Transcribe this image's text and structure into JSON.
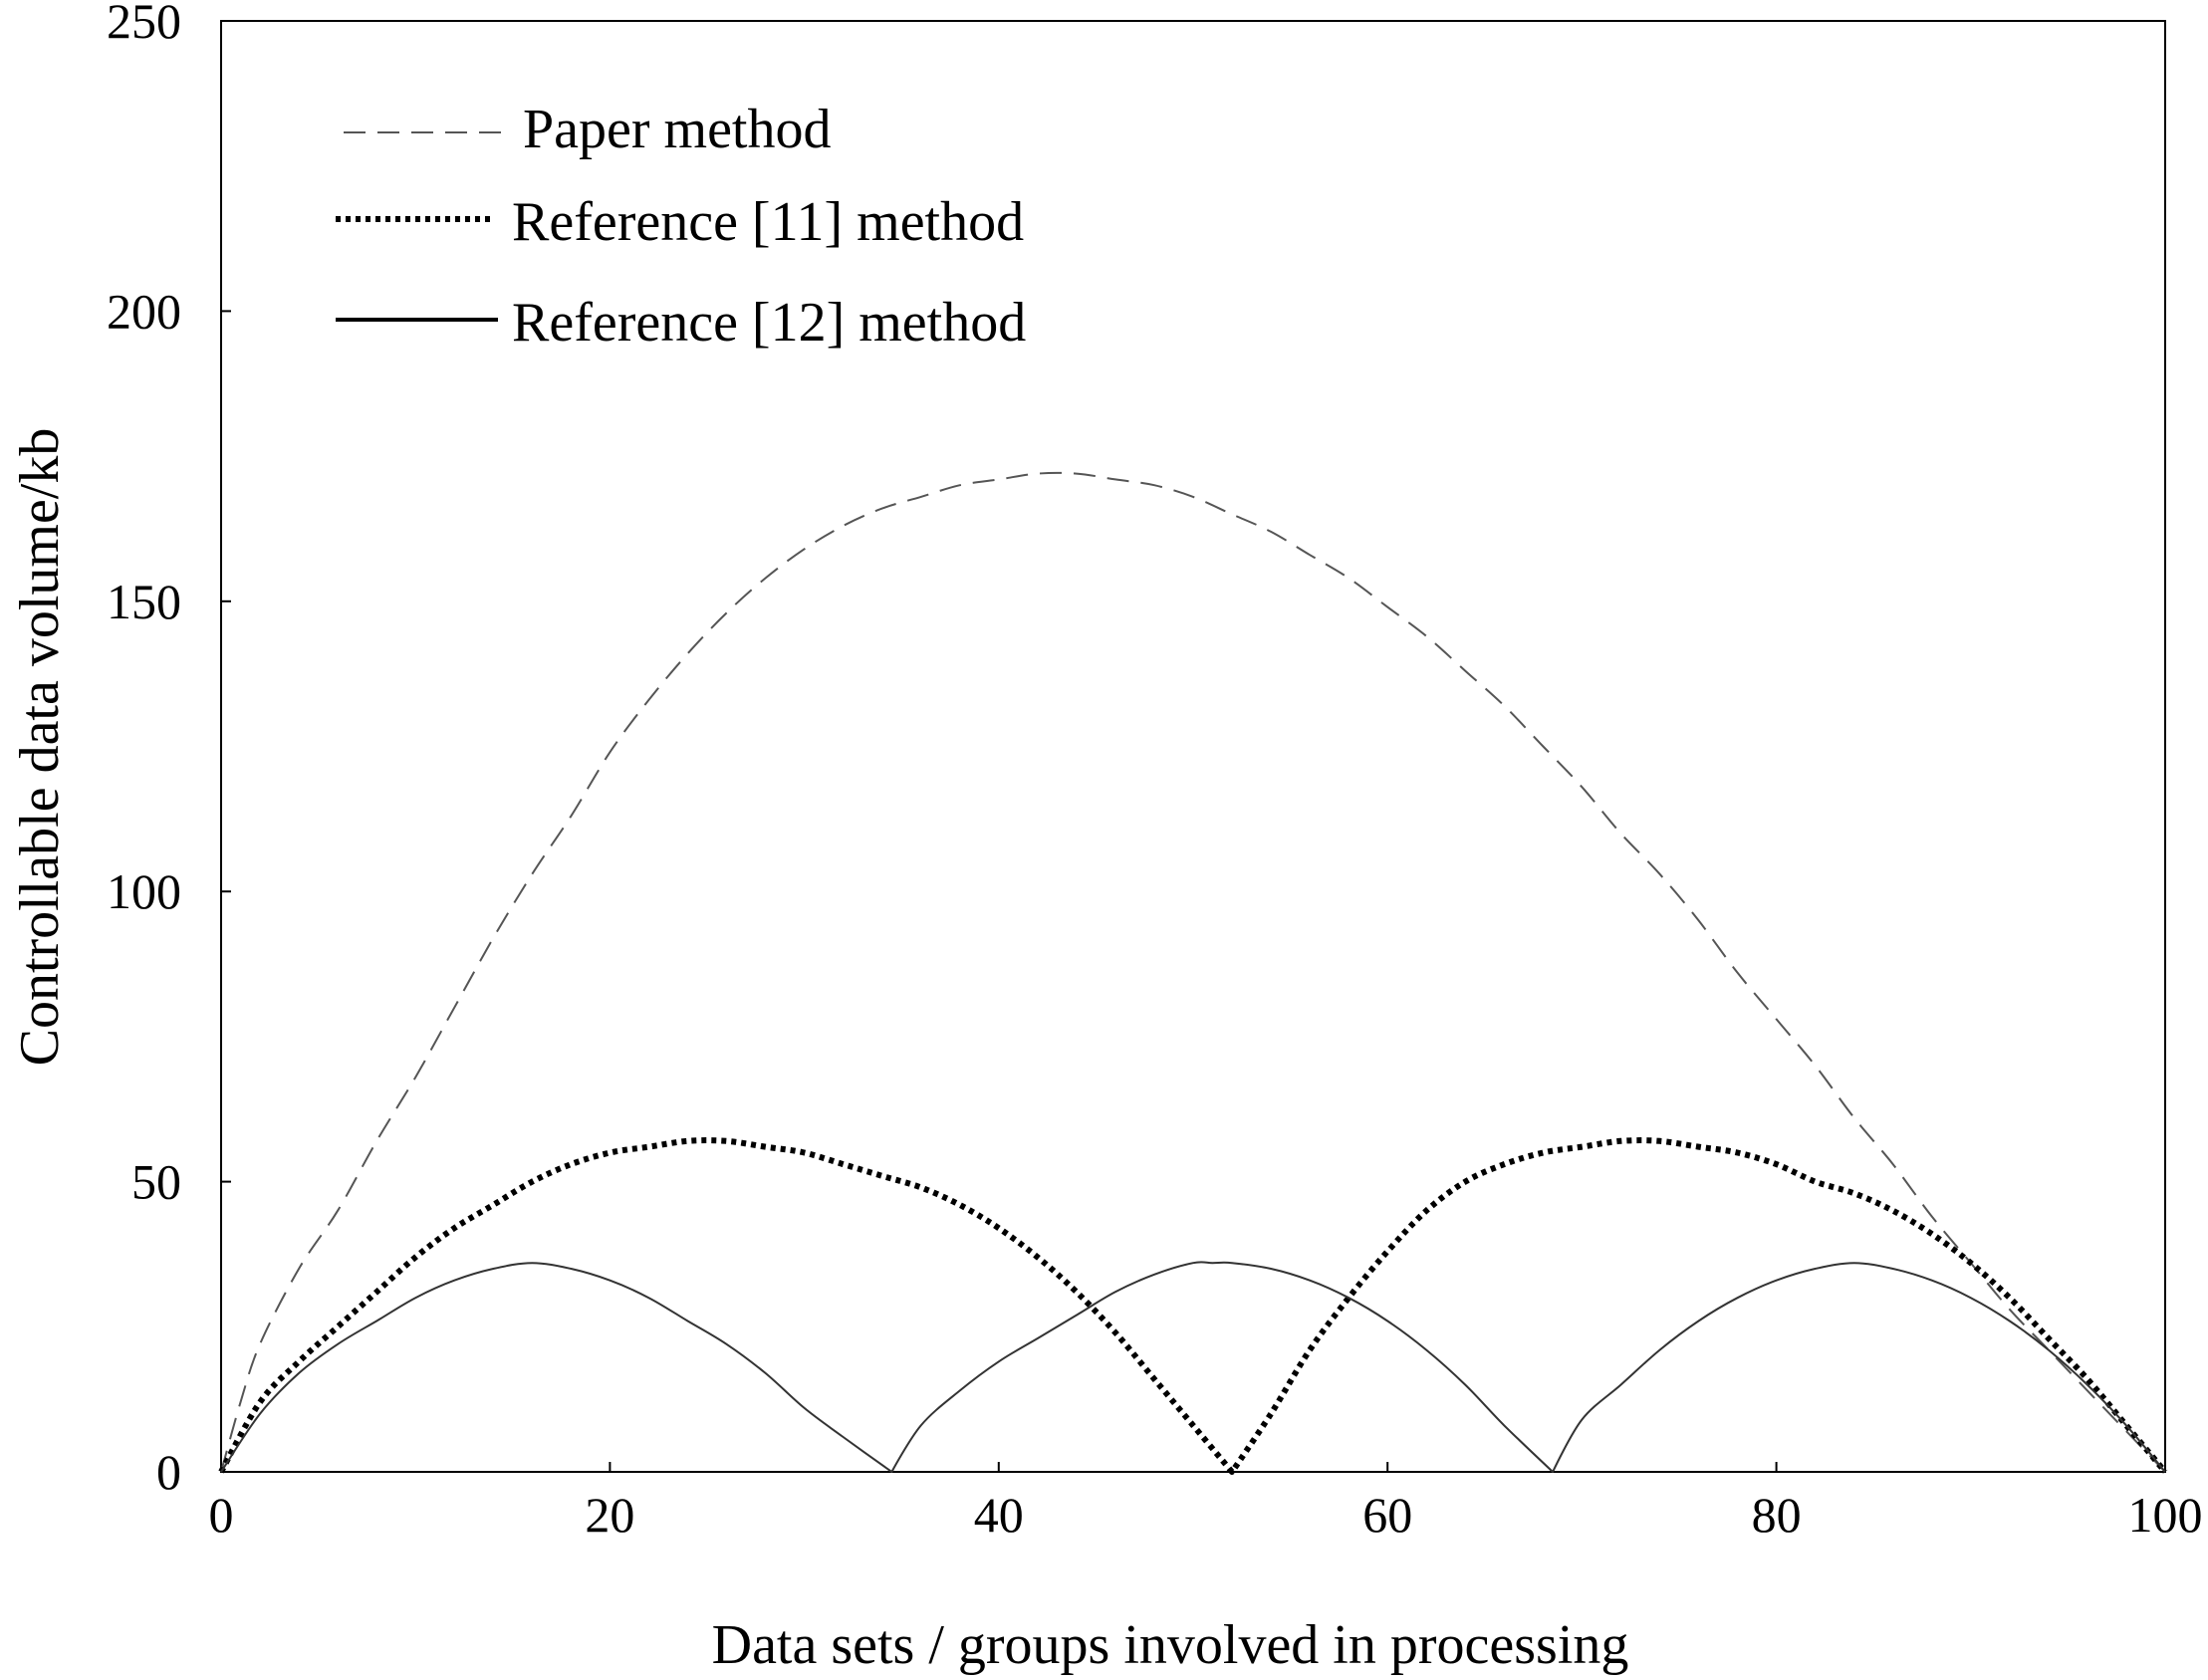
{
  "chart_data": {
    "type": "line",
    "title": "",
    "xlabel": "Data sets / groups involved in processing",
    "ylabel": "Controllable data volume/kb",
    "xlim": [
      0,
      100
    ],
    "ylim": [
      0,
      250
    ],
    "x_ticks": [
      "0",
      "20",
      "40",
      "60",
      "80",
      "100"
    ],
    "y_ticks": [
      "0",
      "50",
      "100",
      "150",
      "200",
      "250"
    ],
    "grid": false,
    "legend_position": "top-left",
    "series": [
      {
        "name": "Paper method",
        "style": "dashed",
        "color": "#555555",
        "x": [
          0,
          1,
          2,
          4,
          6,
          8,
          10,
          12,
          14,
          16,
          18,
          20,
          22,
          24,
          26,
          28,
          30,
          32,
          34,
          36,
          38,
          40,
          42,
          44,
          46,
          48,
          50,
          52,
          54,
          56,
          58,
          60,
          62,
          64,
          66,
          68,
          70,
          72,
          74,
          76,
          78,
          80,
          82,
          84,
          86,
          88,
          90,
          92,
          94,
          96,
          98,
          100
        ],
        "y": [
          0,
          12,
          22,
          35,
          45,
          57,
          68,
          80,
          92,
          103,
          113,
          124,
          133,
          141,
          148,
          154,
          159,
          163,
          166,
          168,
          170,
          171,
          172,
          172,
          171,
          170,
          168,
          165,
          162,
          158,
          154,
          149,
          144,
          138,
          132,
          125,
          118,
          110,
          103,
          95,
          86,
          78,
          70,
          61,
          53,
          44,
          36,
          28,
          21,
          14,
          7,
          0
        ]
      },
      {
        "name": "Reference [11] method",
        "style": "dotted",
        "color": "#000000",
        "x": [
          0,
          2,
          4,
          6,
          8,
          10,
          12,
          14,
          16,
          18,
          20,
          22,
          24,
          26,
          28,
          30,
          32,
          34,
          36,
          38,
          40,
          42,
          44,
          46,
          48,
          50,
          52,
          54,
          56,
          58,
          60,
          62,
          64,
          66,
          68,
          70,
          72,
          74,
          76,
          78,
          80,
          82,
          84,
          86,
          88,
          90,
          92,
          94,
          96,
          98,
          100
        ],
        "y": [
          0,
          12,
          19,
          25,
          31,
          37,
          42,
          46,
          50,
          53,
          55,
          56,
          57,
          57,
          56,
          55,
          53,
          51,
          49,
          46,
          42,
          37,
          31,
          24,
          16,
          8,
          0,
          10,
          21,
          30,
          38,
          45,
          50,
          53,
          55,
          56,
          57,
          57,
          56,
          55,
          53,
          50,
          48,
          45,
          41,
          36,
          30,
          23,
          16,
          8,
          0
        ]
      },
      {
        "name": "Reference [12] method",
        "style": "solid",
        "color": "#333333",
        "x": [
          0,
          2,
          4,
          6,
          8,
          10,
          12,
          14,
          16,
          18,
          20,
          22,
          24,
          26,
          28,
          30,
          32,
          34.5,
          36,
          38,
          40,
          42,
          44,
          46,
          48,
          50,
          51,
          52,
          54,
          56,
          58,
          60,
          62,
          64,
          66,
          68.5,
          70,
          72,
          74,
          76,
          78,
          80,
          82,
          84,
          86,
          88,
          90,
          92,
          94,
          96,
          98,
          100
        ],
        "y": [
          0,
          10,
          17,
          22,
          26,
          30,
          33,
          35,
          36,
          35,
          33,
          30,
          26,
          22,
          17,
          11,
          6,
          0,
          8,
          14,
          19,
          23,
          27,
          31,
          34,
          36,
          36,
          36,
          35,
          33,
          30,
          26,
          21,
          15,
          8,
          0,
          9,
          15,
          21,
          26,
          30,
          33,
          35,
          36,
          35,
          33,
          30,
          26,
          21,
          15,
          8,
          0
        ]
      }
    ]
  }
}
